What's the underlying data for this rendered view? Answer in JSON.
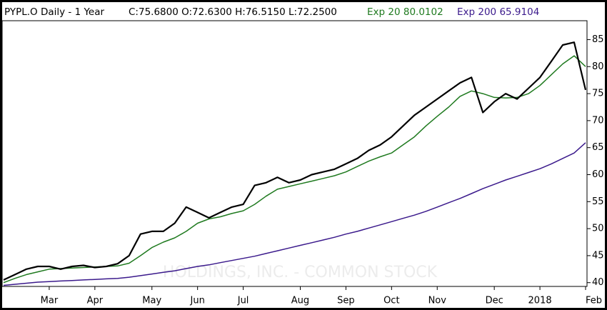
{
  "chart_data": {
    "type": "line",
    "title": "PYPL.O Daily -  1 Year",
    "ohlc": "C:75.6800 O:72.6300 H:76.5150 L:72.2500",
    "watermark": "HOLDINGS, INC. - COMMON STOCK",
    "categories": [
      null,
      null,
      null,
      null,
      "Mar",
      null,
      null,
      null,
      "Apr",
      null,
      null,
      null,
      null,
      "May",
      null,
      null,
      null,
      "Jun",
      null,
      null,
      null,
      "Jul",
      null,
      null,
      null,
      null,
      "Aug",
      null,
      null,
      null,
      "Sep",
      null,
      null,
      null,
      "Oct",
      null,
      null,
      null,
      "Nov",
      null,
      null,
      null,
      null,
      "Dec",
      null,
      null,
      null,
      "2018",
      null,
      null,
      null,
      "Feb"
    ],
    "series": [
      {
        "color": "#000000",
        "values": [
          40.5,
          41.5,
          42.5,
          43,
          43,
          42.5,
          43,
          43.2,
          42.8,
          43,
          43.5,
          45,
          49,
          49.5,
          49.5,
          51,
          54,
          53,
          52,
          53,
          54,
          54.5,
          58,
          58.5,
          59.5,
          58.5,
          59,
          60,
          60.5,
          61,
          62,
          63,
          64.5,
          65.5,
          67,
          69,
          71,
          72.5,
          74,
          75.5,
          77,
          78,
          71.5,
          73.5,
          75,
          74,
          76,
          78,
          81,
          84,
          84.5,
          75.68
        ]
      },
      {
        "name": "Exp 20",
        "color": "#1f7a1f",
        "values": [
          40,
          40.8,
          41.5,
          42,
          42.5,
          42.6,
          42.7,
          42.8,
          42.9,
          43,
          43.1,
          43.6,
          45,
          46.5,
          47.5,
          48.3,
          49.5,
          51,
          51.8,
          52.2,
          52.8,
          53.3,
          54.5,
          56,
          57.3,
          57.8,
          58.3,
          58.8,
          59.3,
          59.8,
          60.5,
          61.5,
          62.5,
          63.3,
          64,
          65.5,
          67,
          69,
          70.8,
          72.5,
          74.5,
          75.5,
          75,
          74.3,
          74.2,
          74.3,
          75,
          76.5,
          78.5,
          80.5,
          82,
          80.0102
        ]
      },
      {
        "name": "Exp 200",
        "color": "#3b1a8c",
        "values": [
          39.5,
          39.7,
          39.9,
          40.1,
          40.2,
          40.3,
          40.4,
          40.5,
          40.6,
          40.7,
          40.8,
          41,
          41.3,
          41.6,
          41.9,
          42.2,
          42.6,
          43,
          43.3,
          43.7,
          44.1,
          44.5,
          44.9,
          45.4,
          45.9,
          46.4,
          46.9,
          47.4,
          47.9,
          48.4,
          49,
          49.5,
          50.1,
          50.7,
          51.3,
          51.9,
          52.5,
          53.2,
          54,
          54.8,
          55.6,
          56.5,
          57.4,
          58.2,
          59,
          59.7,
          60.4,
          61.1,
          62,
          63,
          64,
          65.9104
        ]
      }
    ],
    "ylim": [
      39.3,
      88.5
    ],
    "yticks": [
      40,
      45,
      50,
      55,
      60,
      65,
      70,
      75,
      80,
      85
    ]
  }
}
